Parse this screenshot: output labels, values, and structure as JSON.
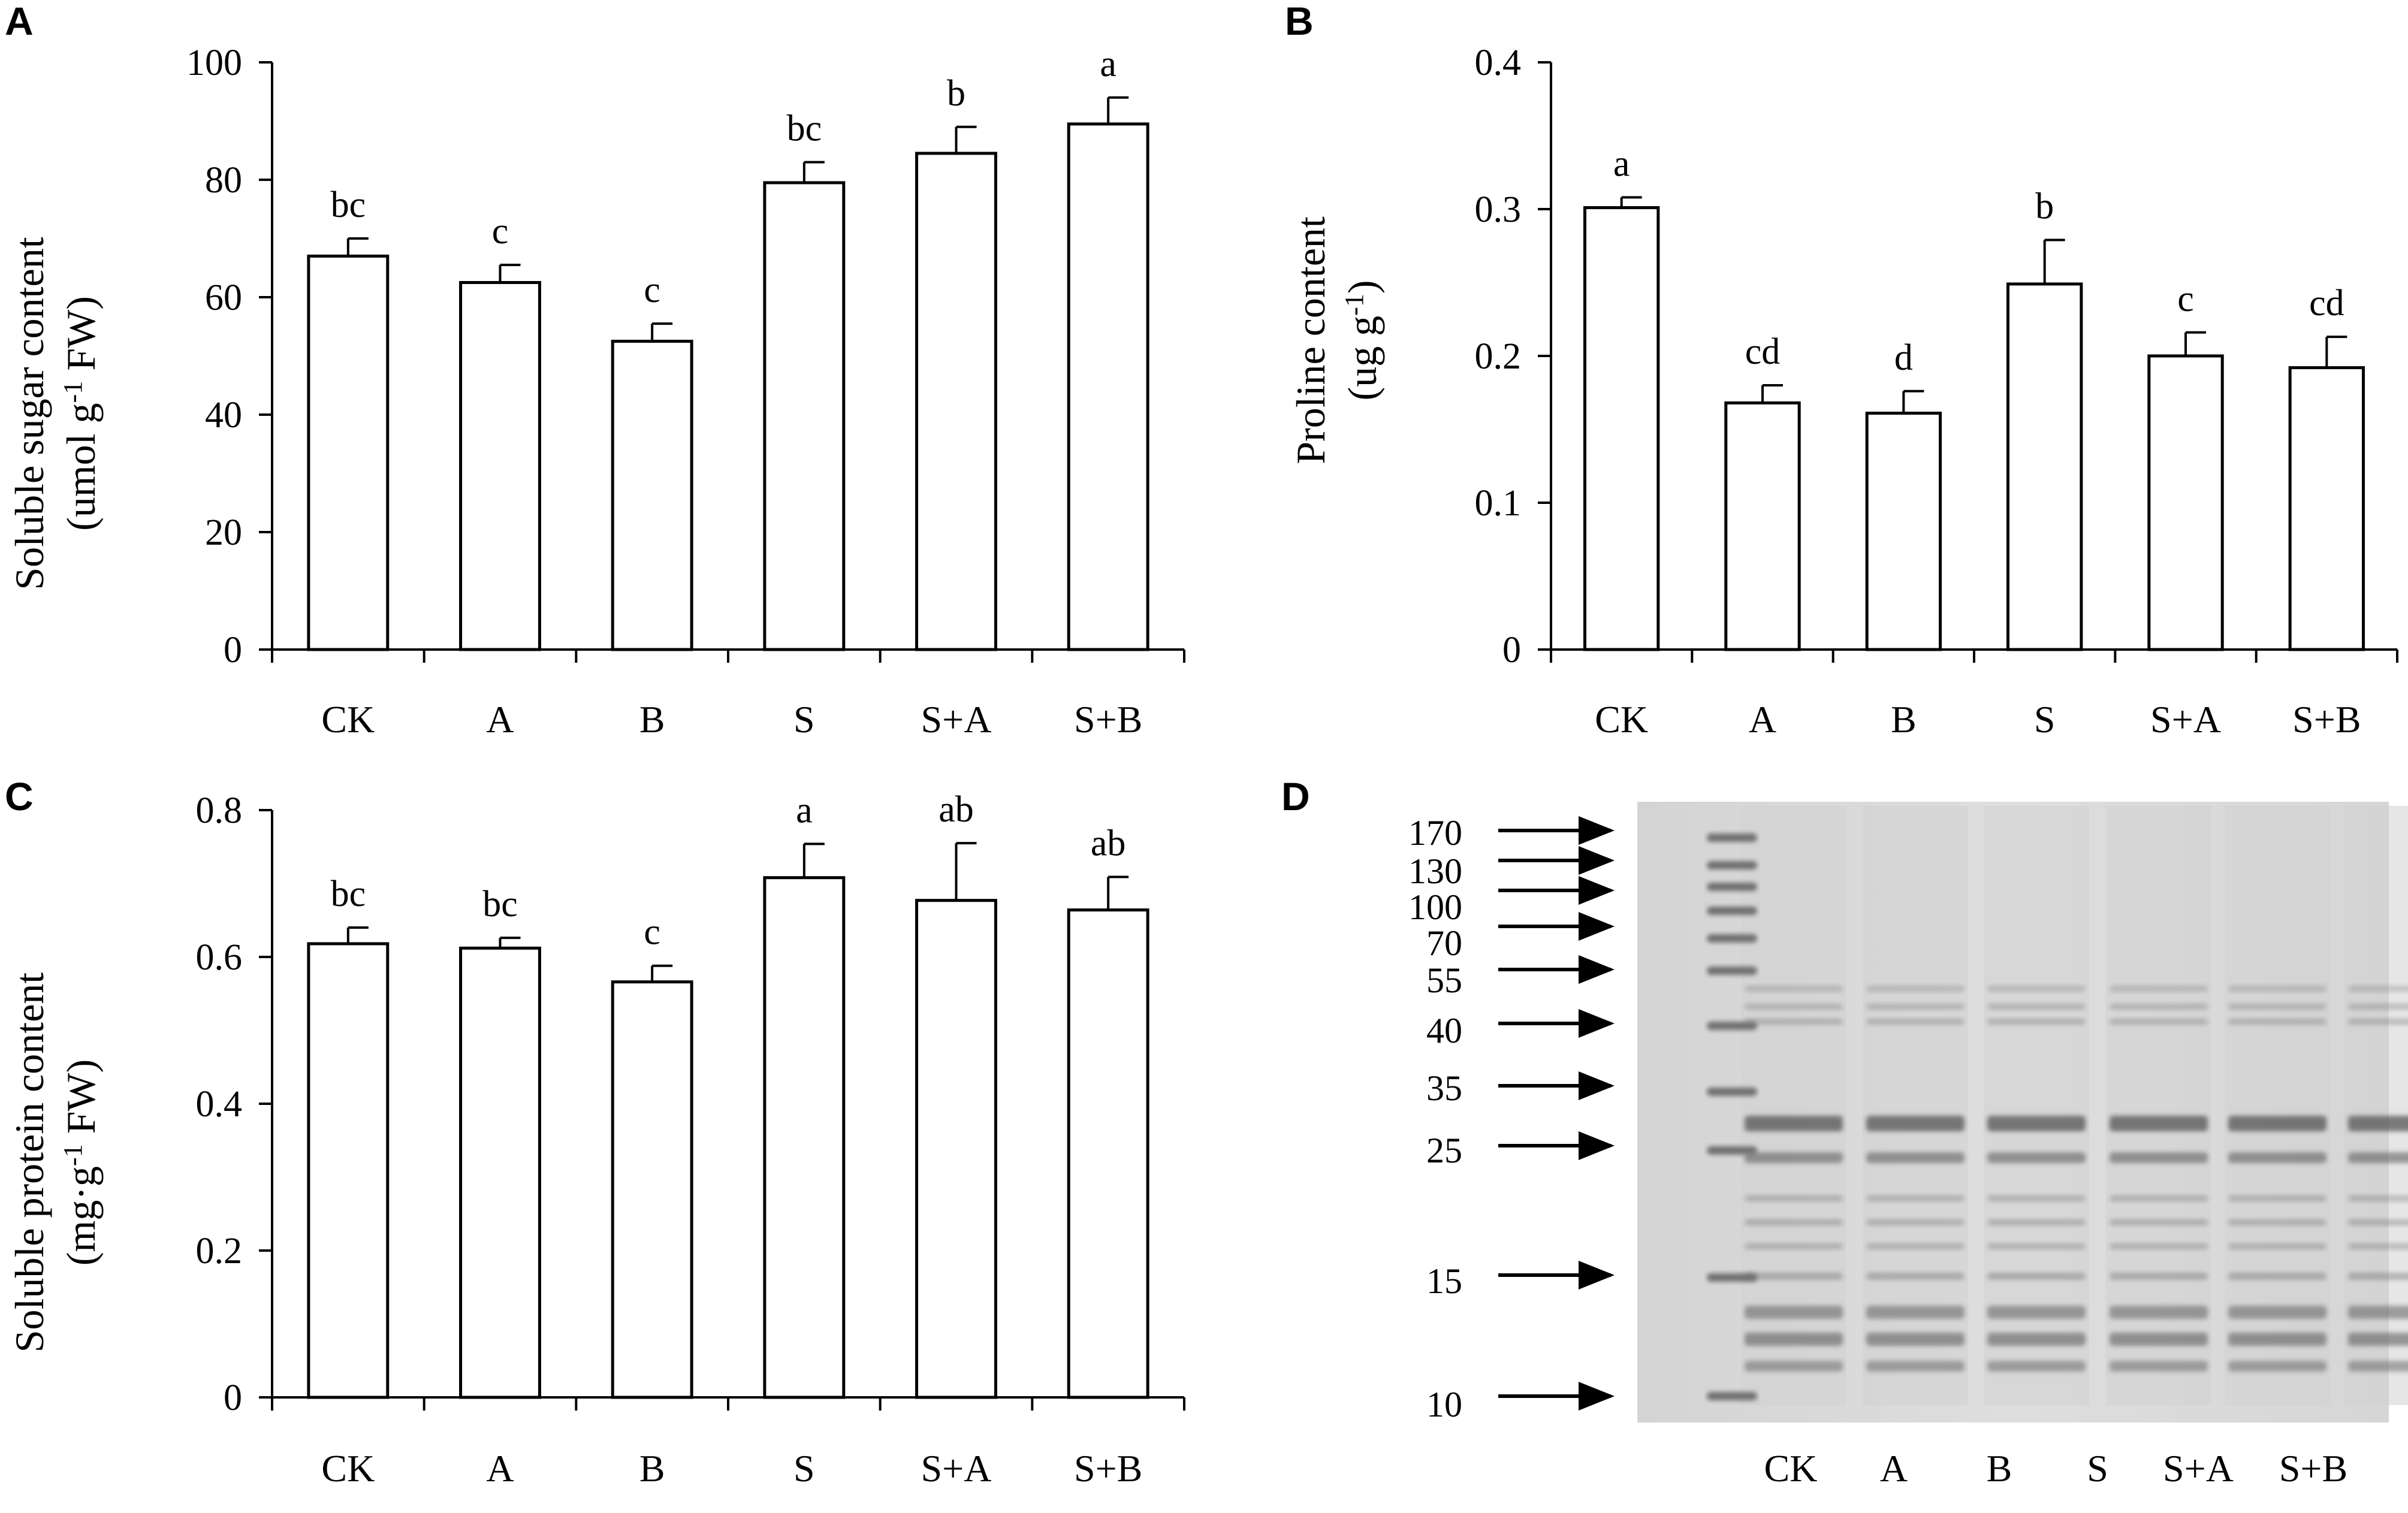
{
  "colors": {
    "ink": "#000000",
    "bar_fill": "#ffffff",
    "gel_bg": "#dcdcdc",
    "gel_band": "#6f6f6f"
  },
  "chart_data": [
    {
      "panel": "A",
      "type": "bar",
      "categories": [
        "CK",
        "A",
        "B",
        "S",
        "S+A",
        "S+B"
      ],
      "values": [
        67,
        62.5,
        52.5,
        79.5,
        84.5,
        89.5
      ],
      "errors": [
        3,
        3,
        3,
        3.5,
        4.5,
        4.5
      ],
      "significance": [
        "bc",
        "c",
        "c",
        "bc",
        "b",
        "a"
      ],
      "ylabel_line1": "Soluble sugar content",
      "ylabel_line2": "(umol g",
      "ylabel_sup": "-1",
      "ylabel_line2_end": " FW)",
      "ylim": [
        0,
        100
      ],
      "yticks": [
        0,
        20,
        40,
        60,
        80,
        100
      ],
      "ytick_labels": [
        "0",
        "20",
        "40",
        "60",
        "80",
        "100"
      ],
      "grid": false
    },
    {
      "panel": "B",
      "type": "bar",
      "categories": [
        "CK",
        "A",
        "B",
        "S",
        "S+A",
        "S+B"
      ],
      "values": [
        0.301,
        0.168,
        0.161,
        0.249,
        0.2,
        0.192
      ],
      "errors": [
        0.007,
        0.012,
        0.015,
        0.03,
        0.016,
        0.021
      ],
      "significance": [
        "a",
        "cd",
        "d",
        "b",
        "c",
        "cd"
      ],
      "ylabel_line1": "Proline content",
      "ylabel_line2": "(ug g",
      "ylabel_sup": "-1",
      "ylabel_line2_end": ")",
      "ylim": [
        0,
        0.4
      ],
      "yticks": [
        0,
        0.1,
        0.2,
        0.3,
        0.4
      ],
      "ytick_labels": [
        "0",
        "0.1",
        "0.2",
        "0.3",
        "0.4"
      ],
      "grid": false
    },
    {
      "panel": "C",
      "type": "bar",
      "categories": [
        "CK",
        "A",
        "B",
        "S",
        "S+A",
        "S+B"
      ],
      "values": [
        0.618,
        0.612,
        0.566,
        0.708,
        0.677,
        0.664
      ],
      "errors": [
        0.022,
        0.014,
        0.022,
        0.046,
        0.078,
        0.045
      ],
      "significance": [
        "bc",
        "bc",
        "c",
        "a",
        "ab",
        "ab"
      ],
      "ylabel_line1": "Soluble protein content",
      "ylabel_line2": "(mg·g",
      "ylabel_sup": "-1",
      "ylabel_line2_end": " FW)",
      "ylim": [
        0,
        0.8
      ],
      "yticks": [
        0,
        0.2,
        0.4,
        0.6,
        0.8
      ],
      "ytick_labels": [
        "0",
        "0.2",
        "0.4",
        "0.6",
        "0.8"
      ],
      "grid": false
    }
  ],
  "gel": {
    "panel": "D",
    "lanes": [
      "CK",
      "A",
      "B",
      "S",
      "S+A",
      "S+B"
    ],
    "markers": [
      "170",
      "130",
      "100",
      "70",
      "55",
      "40",
      "35",
      "25",
      "15",
      "10"
    ]
  }
}
